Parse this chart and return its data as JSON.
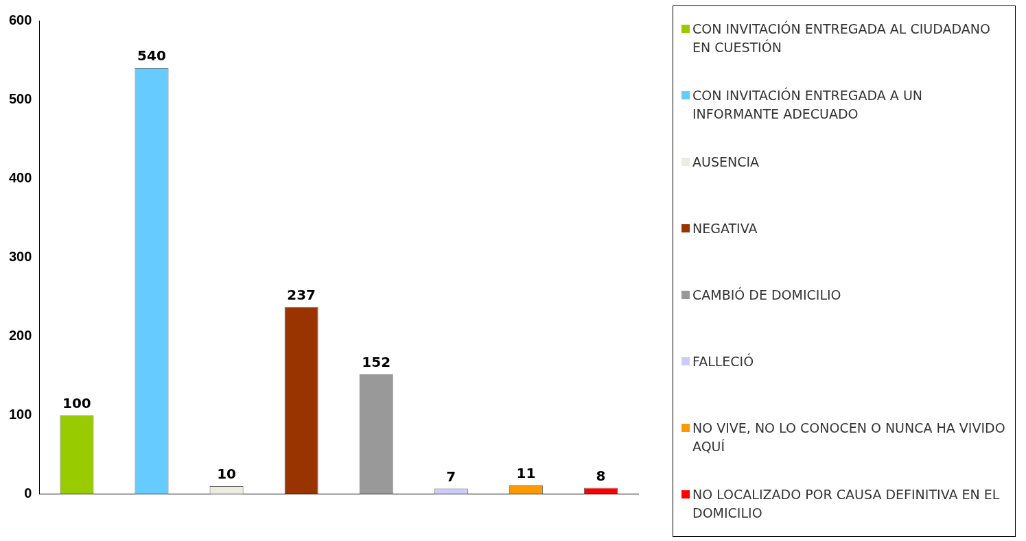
{
  "chart_data": {
    "type": "bar",
    "categories": [
      null,
      null,
      null,
      null,
      null,
      null,
      null,
      null
    ],
    "series": [
      {
        "name": "CON INVITACIÓN ENTREGADA AL CIUDADANO EN CUESTIÓN",
        "color": "#99cc00",
        "values": [
          100,
          null,
          null,
          null,
          null,
          null,
          null,
          null
        ]
      },
      {
        "name": "CON INVITACIÓN ENTREGADA A UN INFORMANTE ADECUADO",
        "color": "#66ccff",
        "values": [
          null,
          540,
          null,
          null,
          null,
          null,
          null,
          null
        ]
      },
      {
        "name": "AUSENCIA",
        "color": "#ecece0",
        "values": [
          null,
          null,
          10,
          null,
          null,
          null,
          null,
          null
        ]
      },
      {
        "name": "NEGATIVA",
        "color": "#993300",
        "values": [
          null,
          null,
          null,
          237,
          null,
          null,
          null,
          null
        ]
      },
      {
        "name": "CAMBIÓ DE DOMICILIO",
        "color": "#999999",
        "values": [
          null,
          null,
          null,
          null,
          152,
          null,
          null,
          null
        ]
      },
      {
        "name": "FALLECIÓ",
        "color": "#ccccff",
        "values": [
          null,
          null,
          null,
          null,
          null,
          7,
          null,
          null
        ]
      },
      {
        "name": "NO VIVE, NO LO CONOCEN O NUNCA HA VIVIDO AQUÍ",
        "color": "#ff9900",
        "values": [
          null,
          null,
          null,
          null,
          null,
          null,
          11,
          null
        ]
      },
      {
        "name": "NO LOCALIZADO POR CAUSA DEFINITIVA EN EL DOMICILIO",
        "color": "#ff0000",
        "values": [
          null,
          null,
          null,
          null,
          null,
          null,
          null,
          8
        ]
      }
    ],
    "ylim": [
      0,
      600
    ],
    "yticks": [
      0,
      100,
      200,
      300,
      400,
      500,
      600
    ],
    "grid": false,
    "legend": "right",
    "data_labels": true
  }
}
